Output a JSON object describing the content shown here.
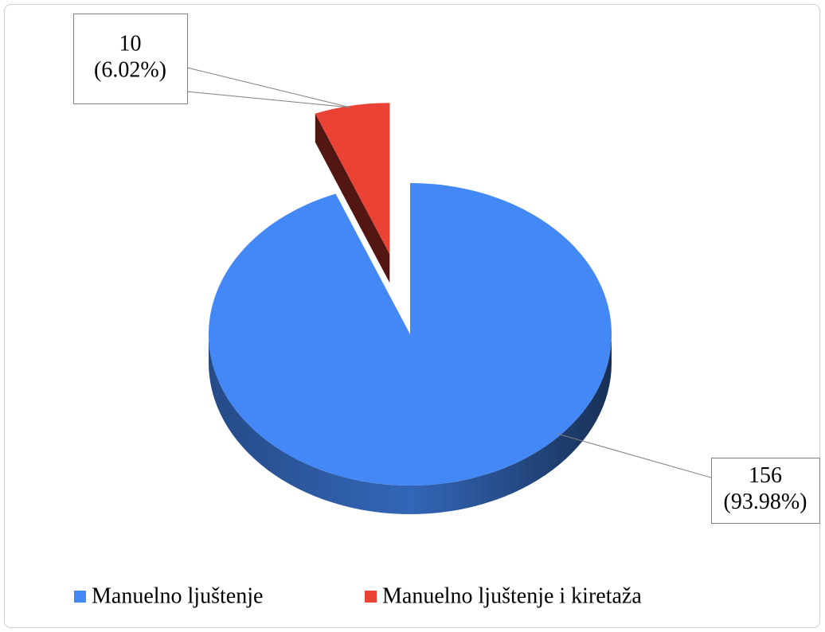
{
  "chart_data": {
    "type": "pie",
    "categories": [
      "Manuelno ljuštenje",
      "Manuelno ljuštenje i kiretaža"
    ],
    "values": [
      156,
      10
    ],
    "value_labels": [
      [
        "156",
        "(93.98%)"
      ],
      [
        "10",
        "(6.02%)"
      ]
    ],
    "colors": [
      "#4488f5",
      "#ea4335"
    ],
    "legend": "bottom"
  }
}
